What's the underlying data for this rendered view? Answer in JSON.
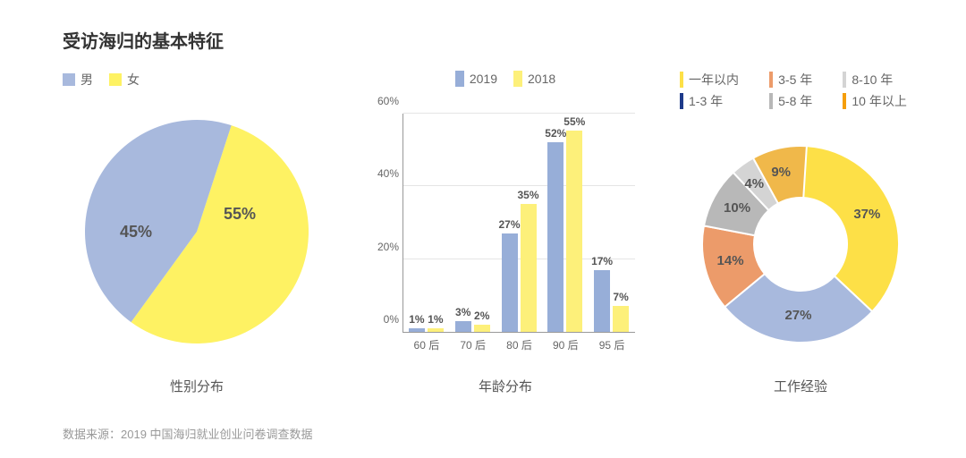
{
  "title": "受访海归的基本特征",
  "source": "数据来源：2019 中国海归就业创业问卷调查数据",
  "palette": {
    "blue": "#a8b9dd",
    "yellow": "#fef263",
    "bar_blue": "#97aed8",
    "bar_yellow": "#fdf07a",
    "d_yellow": "#fde047",
    "d_blue": "#a8b9dd",
    "d_orange": "#ec9b6a",
    "d_gray": "#b8b8b8",
    "d_lightgray": "#d4d4d4",
    "d_amber": "#f0b84a",
    "l_under1": "#fde047",
    "l_1_3": "#1e3a8a",
    "l_3_5": "#ec9b6a",
    "l_5_8": "#b8b8b8",
    "l_8_10": "#d4d4d4",
    "l_over10": "#f59e0b"
  },
  "gender_pie": {
    "caption": "性别分布",
    "legend": [
      {
        "label": "男",
        "color_key": "blue"
      },
      {
        "label": "女",
        "color_key": "yellow"
      }
    ],
    "slices": [
      {
        "value": 45,
        "label": "45%",
        "color_key": "blue"
      },
      {
        "value": 55,
        "label": "55%",
        "color_key": "yellow"
      }
    ]
  },
  "age_bar": {
    "caption": "年龄分布",
    "legend": [
      {
        "label": "2019",
        "color_key": "bar_blue"
      },
      {
        "label": "2018",
        "color_key": "bar_yellow"
      }
    ],
    "ymax": 60,
    "ystep": 20,
    "categories": [
      "60 后",
      "70 后",
      "80 后",
      "90 后",
      "95 后"
    ],
    "series": {
      "2019": [
        1,
        3,
        27,
        52,
        17
      ],
      "2018": [
        1,
        2,
        35,
        55,
        7
      ]
    }
  },
  "exp_donut": {
    "caption": "工作经验",
    "legend": [
      {
        "label": "一年以内",
        "color_key": "l_under1"
      },
      {
        "label": "3-5 年",
        "color_key": "l_3_5"
      },
      {
        "label": "8-10 年",
        "color_key": "l_8_10"
      },
      {
        "label": "1-3 年",
        "color_key": "l_1_3"
      },
      {
        "label": "5-8 年",
        "color_key": "l_5_8"
      },
      {
        "label": "10 年以上",
        "color_key": "l_over10"
      }
    ],
    "slices_ordered_cw_from_top": [
      {
        "value": 37,
        "label": "37%",
        "color_key": "d_yellow"
      },
      {
        "value": 27,
        "label": "27%",
        "color_key": "d_blue"
      },
      {
        "value": 14,
        "label": "14%",
        "color_key": "d_orange"
      },
      {
        "value": 10,
        "label": "10%",
        "color_key": "d_gray"
      },
      {
        "value": 4,
        "label": "4%",
        "color_key": "d_lightgray"
      },
      {
        "value": 9,
        "label": "9%",
        "color_key": "d_amber"
      }
    ]
  }
}
